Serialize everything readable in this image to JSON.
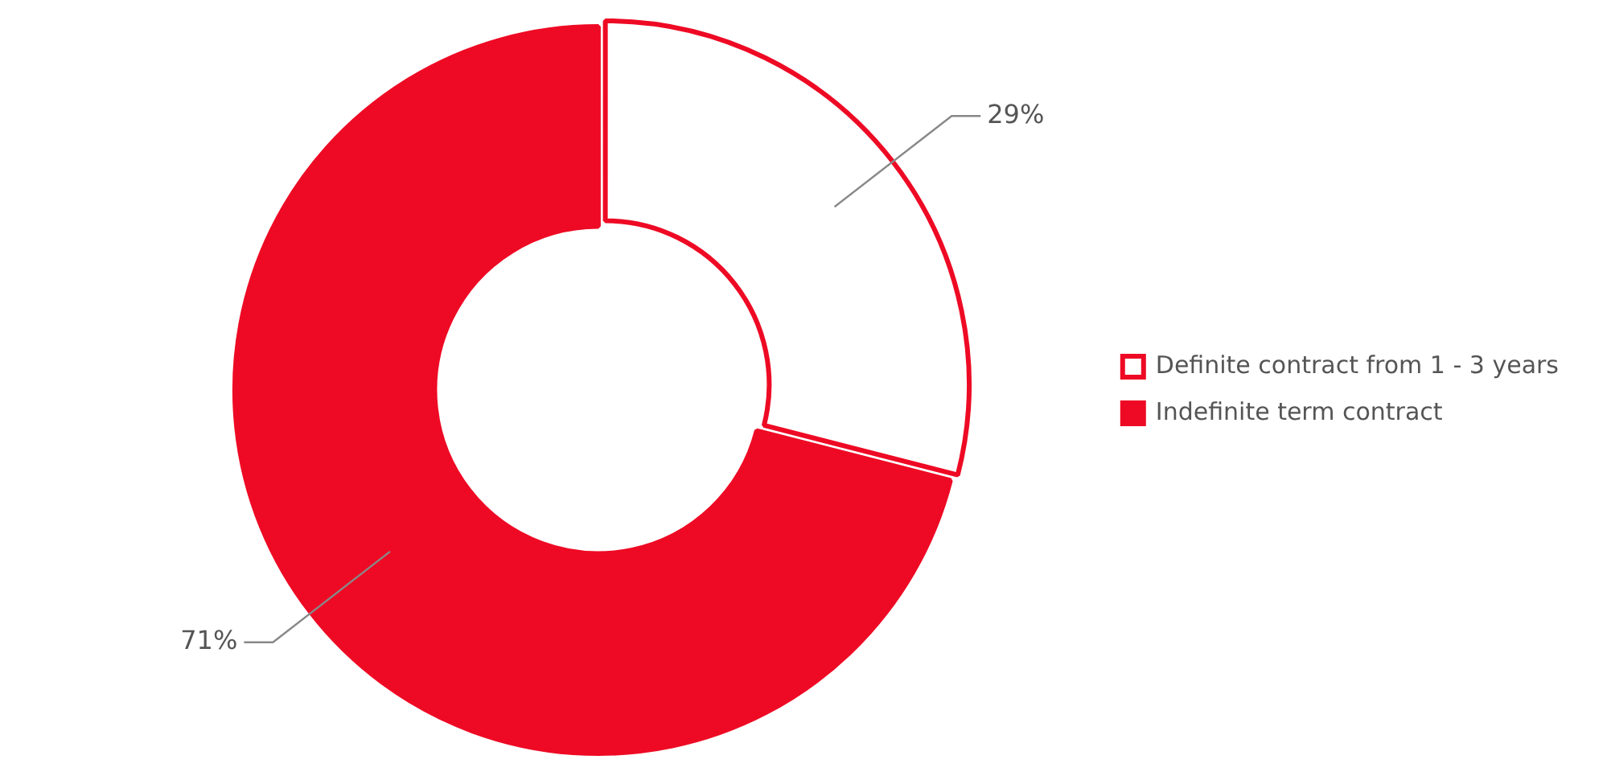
{
  "chart_data": {
    "type": "donut",
    "categories": [
      "Definite contract from 1 - 3 years",
      "Indefinite term contract"
    ],
    "values": [
      29,
      71
    ],
    "colors": [
      "#ffffff",
      "#ee0a24"
    ],
    "value_labels": [
      "29%",
      "71%"
    ],
    "legend": "right"
  }
}
